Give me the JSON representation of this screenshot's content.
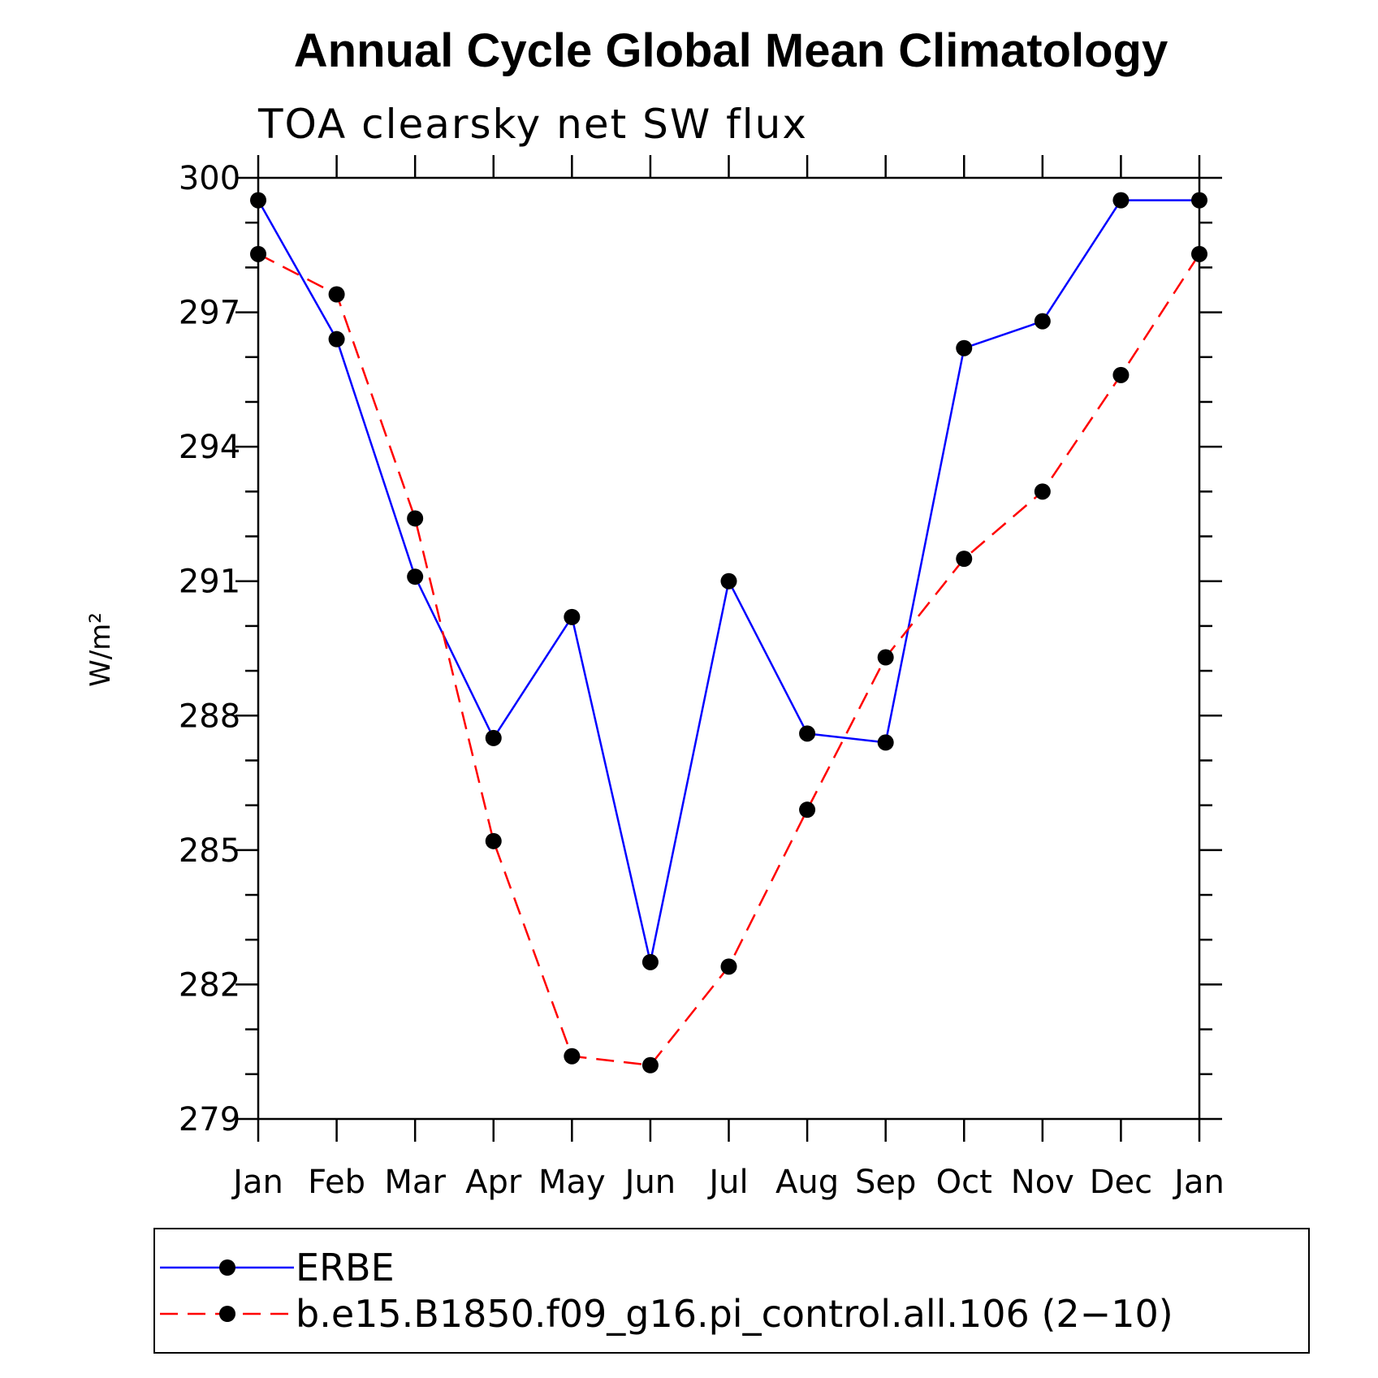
{
  "chart_data": {
    "type": "line",
    "title": "Annual Cycle Global Mean Climatology",
    "subtitle": "TOA clearsky net SW flux",
    "xlabel": "",
    "ylabel": "W/m²",
    "categories": [
      "Jan",
      "Feb",
      "Mar",
      "Apr",
      "May",
      "Jun",
      "Jul",
      "Aug",
      "Sep",
      "Oct",
      "Nov",
      "Dec",
      "Jan"
    ],
    "ylim": [
      279,
      300
    ],
    "yticks": [
      279,
      282,
      285,
      288,
      291,
      294,
      297,
      300
    ],
    "ytick_labels": [
      "279",
      "282",
      "285",
      "288",
      "291",
      "294",
      "297",
      "300"
    ],
    "legend_placement": "bottom",
    "grid": false,
    "series": [
      {
        "name": "ERBE",
        "color": "#0000ff",
        "dash": "solid",
        "marker": "filled-circle",
        "values": [
          299.5,
          296.4,
          291.1,
          287.5,
          290.2,
          282.5,
          291.0,
          287.6,
          287.4,
          296.2,
          296.8,
          299.5,
          299.5
        ]
      },
      {
        "name": "b.e15.B1850.f09_g16.pi_control.all.106 (2−10)",
        "color": "#ff0000",
        "dash": "dashed",
        "marker": "filled-circle",
        "values": [
          298.3,
          297.4,
          292.4,
          285.2,
          280.4,
          280.2,
          282.4,
          285.9,
          289.3,
          291.5,
          293.0,
          295.6,
          298.3
        ]
      }
    ]
  }
}
